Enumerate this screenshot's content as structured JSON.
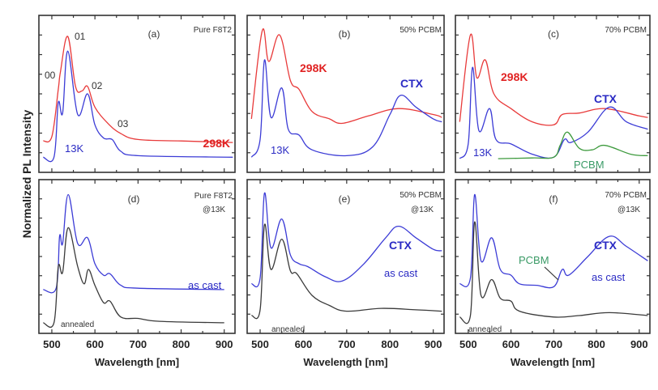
{
  "figure": {
    "ylabel": "Normalized PL Intensity"
  },
  "colors": {
    "red": "#e83a3a",
    "blue": "#3c3cd6",
    "green": "#3d9a3d",
    "black": "#3a3a3a",
    "red_label": "#e02222",
    "blue_label": "#2b2bc4",
    "green_label": "#3a9a66"
  },
  "chart_data": [
    {
      "type": "line",
      "panel": "(a)",
      "xlabel": "Wavelength [nm]",
      "ylabel": "Normalized PL Intensity",
      "xlim": [
        470,
        925
      ],
      "ylim": [
        0,
        1
      ],
      "xticks": [
        500,
        600,
        700,
        800,
        900
      ],
      "yticklabels": false,
      "annotations": [
        "(a)",
        "Pure F8T2",
        "01",
        "00",
        "02",
        "03",
        "298K",
        "13K"
      ],
      "series": [
        {
          "name": "298K",
          "color": "red",
          "x": [
            480,
            500,
            515,
            520,
            537,
            555,
            570,
            583,
            600,
            630,
            660,
            700,
            800,
            920
          ],
          "y": [
            0.18,
            0.21,
            0.53,
            0.65,
            0.89,
            0.55,
            0.52,
            0.55,
            0.41,
            0.3,
            0.23,
            0.19,
            0.18,
            0.17
          ]
        },
        {
          "name": "13K",
          "color": "blue",
          "x": [
            480,
            505,
            515,
            525,
            537,
            560,
            583,
            600,
            620,
            640,
            660,
            700,
            920
          ],
          "y": [
            0.07,
            0.07,
            0.44,
            0.37,
            0.79,
            0.36,
            0.5,
            0.29,
            0.2,
            0.19,
            0.11,
            0.08,
            0.07
          ]
        }
      ]
    },
    {
      "type": "line",
      "panel": "(b)",
      "xlabel": "Wavelength [nm]",
      "xlim": [
        470,
        925
      ],
      "ylim": [
        0,
        1
      ],
      "xticks": [
        500,
        600,
        700,
        800,
        900
      ],
      "yticklabels": false,
      "annotations": [
        "(b)",
        "50% PCBM",
        "298K",
        "CTX",
        "13K"
      ],
      "series": [
        {
          "name": "298K",
          "color": "red",
          "x": [
            480,
            505,
            520,
            545,
            570,
            590,
            620,
            660,
            690,
            750,
            820,
            900,
            920
          ],
          "y": [
            0.33,
            0.93,
            0.72,
            0.9,
            0.59,
            0.53,
            0.38,
            0.33,
            0.3,
            0.35,
            0.4,
            0.36,
            0.34
          ]
        },
        {
          "name": "13K",
          "color": "blue",
          "x": [
            480,
            500,
            510,
            525,
            550,
            565,
            590,
            620,
            700,
            760,
            800,
            825,
            860,
            900,
            920
          ],
          "y": [
            0.07,
            0.19,
            0.73,
            0.34,
            0.54,
            0.26,
            0.22,
            0.12,
            0.08,
            0.14,
            0.36,
            0.49,
            0.41,
            0.33,
            0.31
          ]
        }
      ]
    },
    {
      "type": "line",
      "panel": "(c)",
      "xlabel": "Wavelength [nm]",
      "xlim": [
        470,
        925
      ],
      "ylim": [
        0,
        1
      ],
      "xticks": [
        500,
        600,
        700,
        800,
        900
      ],
      "yticklabels": false,
      "annotations": [
        "(c)",
        "70% PCBM",
        "298K",
        "CTX",
        "13K",
        "PCBM"
      ],
      "series": [
        {
          "name": "298K",
          "color": "red",
          "x": [
            480,
            505,
            520,
            540,
            560,
            600,
            650,
            700,
            720,
            760,
            820,
            900,
            920
          ],
          "y": [
            0.31,
            0.9,
            0.61,
            0.73,
            0.5,
            0.4,
            0.31,
            0.29,
            0.36,
            0.37,
            0.4,
            0.35,
            0.34
          ]
        },
        {
          "name": "13K",
          "color": "blue",
          "x": [
            480,
            500,
            510,
            525,
            550,
            565,
            600,
            650,
            700,
            725,
            740,
            780,
            830,
            870,
            920
          ],
          "y": [
            0.06,
            0.16,
            0.68,
            0.25,
            0.4,
            0.19,
            0.16,
            0.09,
            0.07,
            0.19,
            0.17,
            0.24,
            0.41,
            0.31,
            0.26
          ]
        },
        {
          "name": "PCBM",
          "color": "green",
          "x": [
            570,
            650,
            700,
            715,
            732,
            760,
            790,
            820,
            880,
            920
          ],
          "y": [
            0.06,
            0.065,
            0.07,
            0.15,
            0.24,
            0.13,
            0.12,
            0.15,
            0.09,
            0.08
          ]
        }
      ]
    },
    {
      "type": "line",
      "panel": "(d)",
      "xlabel": "Wavelength [nm]",
      "xlim": [
        470,
        925
      ],
      "ylim": [
        0,
        1
      ],
      "xticks": [
        500,
        600,
        700,
        800,
        900
      ],
      "yticklabels": false,
      "annotations": [
        "(d)",
        "Pure F8T2",
        "@13K",
        "as cast",
        "annealed"
      ],
      "series": [
        {
          "name": "as cast",
          "color": "blue",
          "x": [
            480,
            510,
            518,
            525,
            538,
            560,
            583,
            600,
            620,
            635,
            660,
            700,
            900
          ],
          "y": [
            0.27,
            0.28,
            0.64,
            0.59,
            0.93,
            0.59,
            0.63,
            0.45,
            0.37,
            0.38,
            0.3,
            0.28,
            0.27
          ]
        },
        {
          "name": "annealed",
          "color": "black",
          "x": [
            480,
            505,
            515,
            525,
            538,
            560,
            575,
            585,
            600,
            620,
            635,
            660,
            700,
            750,
            900
          ],
          "y": [
            0.04,
            0.04,
            0.43,
            0.39,
            0.7,
            0.43,
            0.31,
            0.41,
            0.3,
            0.18,
            0.19,
            0.08,
            0.07,
            0.05,
            0.04
          ]
        }
      ]
    },
    {
      "type": "line",
      "panel": "(e)",
      "xlabel": "Wavelength [nm]",
      "xlim": [
        470,
        925
      ],
      "ylim": [
        0,
        1
      ],
      "xticks": [
        500,
        600,
        700,
        800,
        900
      ],
      "yticklabels": false,
      "annotations": [
        "(e)",
        "50% PCBM",
        "@13K",
        "CTX",
        "as cast",
        "annealed"
      ],
      "series": [
        {
          "name": "as cast",
          "color": "blue",
          "x": [
            480,
            500,
            510,
            525,
            550,
            570,
            590,
            610,
            650,
            690,
            740,
            790,
            820,
            860,
            900,
            920
          ],
          "y": [
            0.31,
            0.35,
            0.94,
            0.56,
            0.76,
            0.51,
            0.45,
            0.43,
            0.36,
            0.33,
            0.45,
            0.63,
            0.71,
            0.63,
            0.55,
            0.54
          ]
        },
        {
          "name": "annealed",
          "color": "black",
          "x": [
            480,
            500,
            510,
            525,
            550,
            570,
            585,
            620,
            660,
            700,
            780,
            860,
            920
          ],
          "y": [
            0.09,
            0.13,
            0.72,
            0.41,
            0.62,
            0.4,
            0.38,
            0.23,
            0.16,
            0.12,
            0.14,
            0.13,
            0.12
          ]
        }
      ]
    },
    {
      "type": "line",
      "panel": "(f)",
      "xlabel": "Wavelength [nm]",
      "xlim": [
        470,
        925
      ],
      "ylim": [
        0,
        1
      ],
      "xticks": [
        500,
        600,
        700,
        800,
        900
      ],
      "yticklabels": false,
      "annotations": [
        "(f)",
        "70% PCBM",
        "@13K",
        "CTX",
        "PCBM",
        "as cast",
        "annealed"
      ],
      "series": [
        {
          "name": "as cast",
          "color": "blue",
          "x": [
            480,
            505,
            515,
            530,
            555,
            575,
            600,
            620,
            660,
            700,
            720,
            735,
            780,
            830,
            870,
            920
          ],
          "y": [
            0.31,
            0.35,
            0.93,
            0.47,
            0.63,
            0.41,
            0.37,
            0.31,
            0.3,
            0.29,
            0.41,
            0.37,
            0.5,
            0.64,
            0.57,
            0.47
          ]
        },
        {
          "name": "annealed",
          "color": "black",
          "x": [
            480,
            505,
            515,
            530,
            555,
            575,
            600,
            620,
            700,
            760,
            830,
            920
          ],
          "y": [
            0.08,
            0.09,
            0.74,
            0.23,
            0.34,
            0.21,
            0.19,
            0.12,
            0.08,
            0.09,
            0.11,
            0.09
          ]
        }
      ]
    }
  ]
}
